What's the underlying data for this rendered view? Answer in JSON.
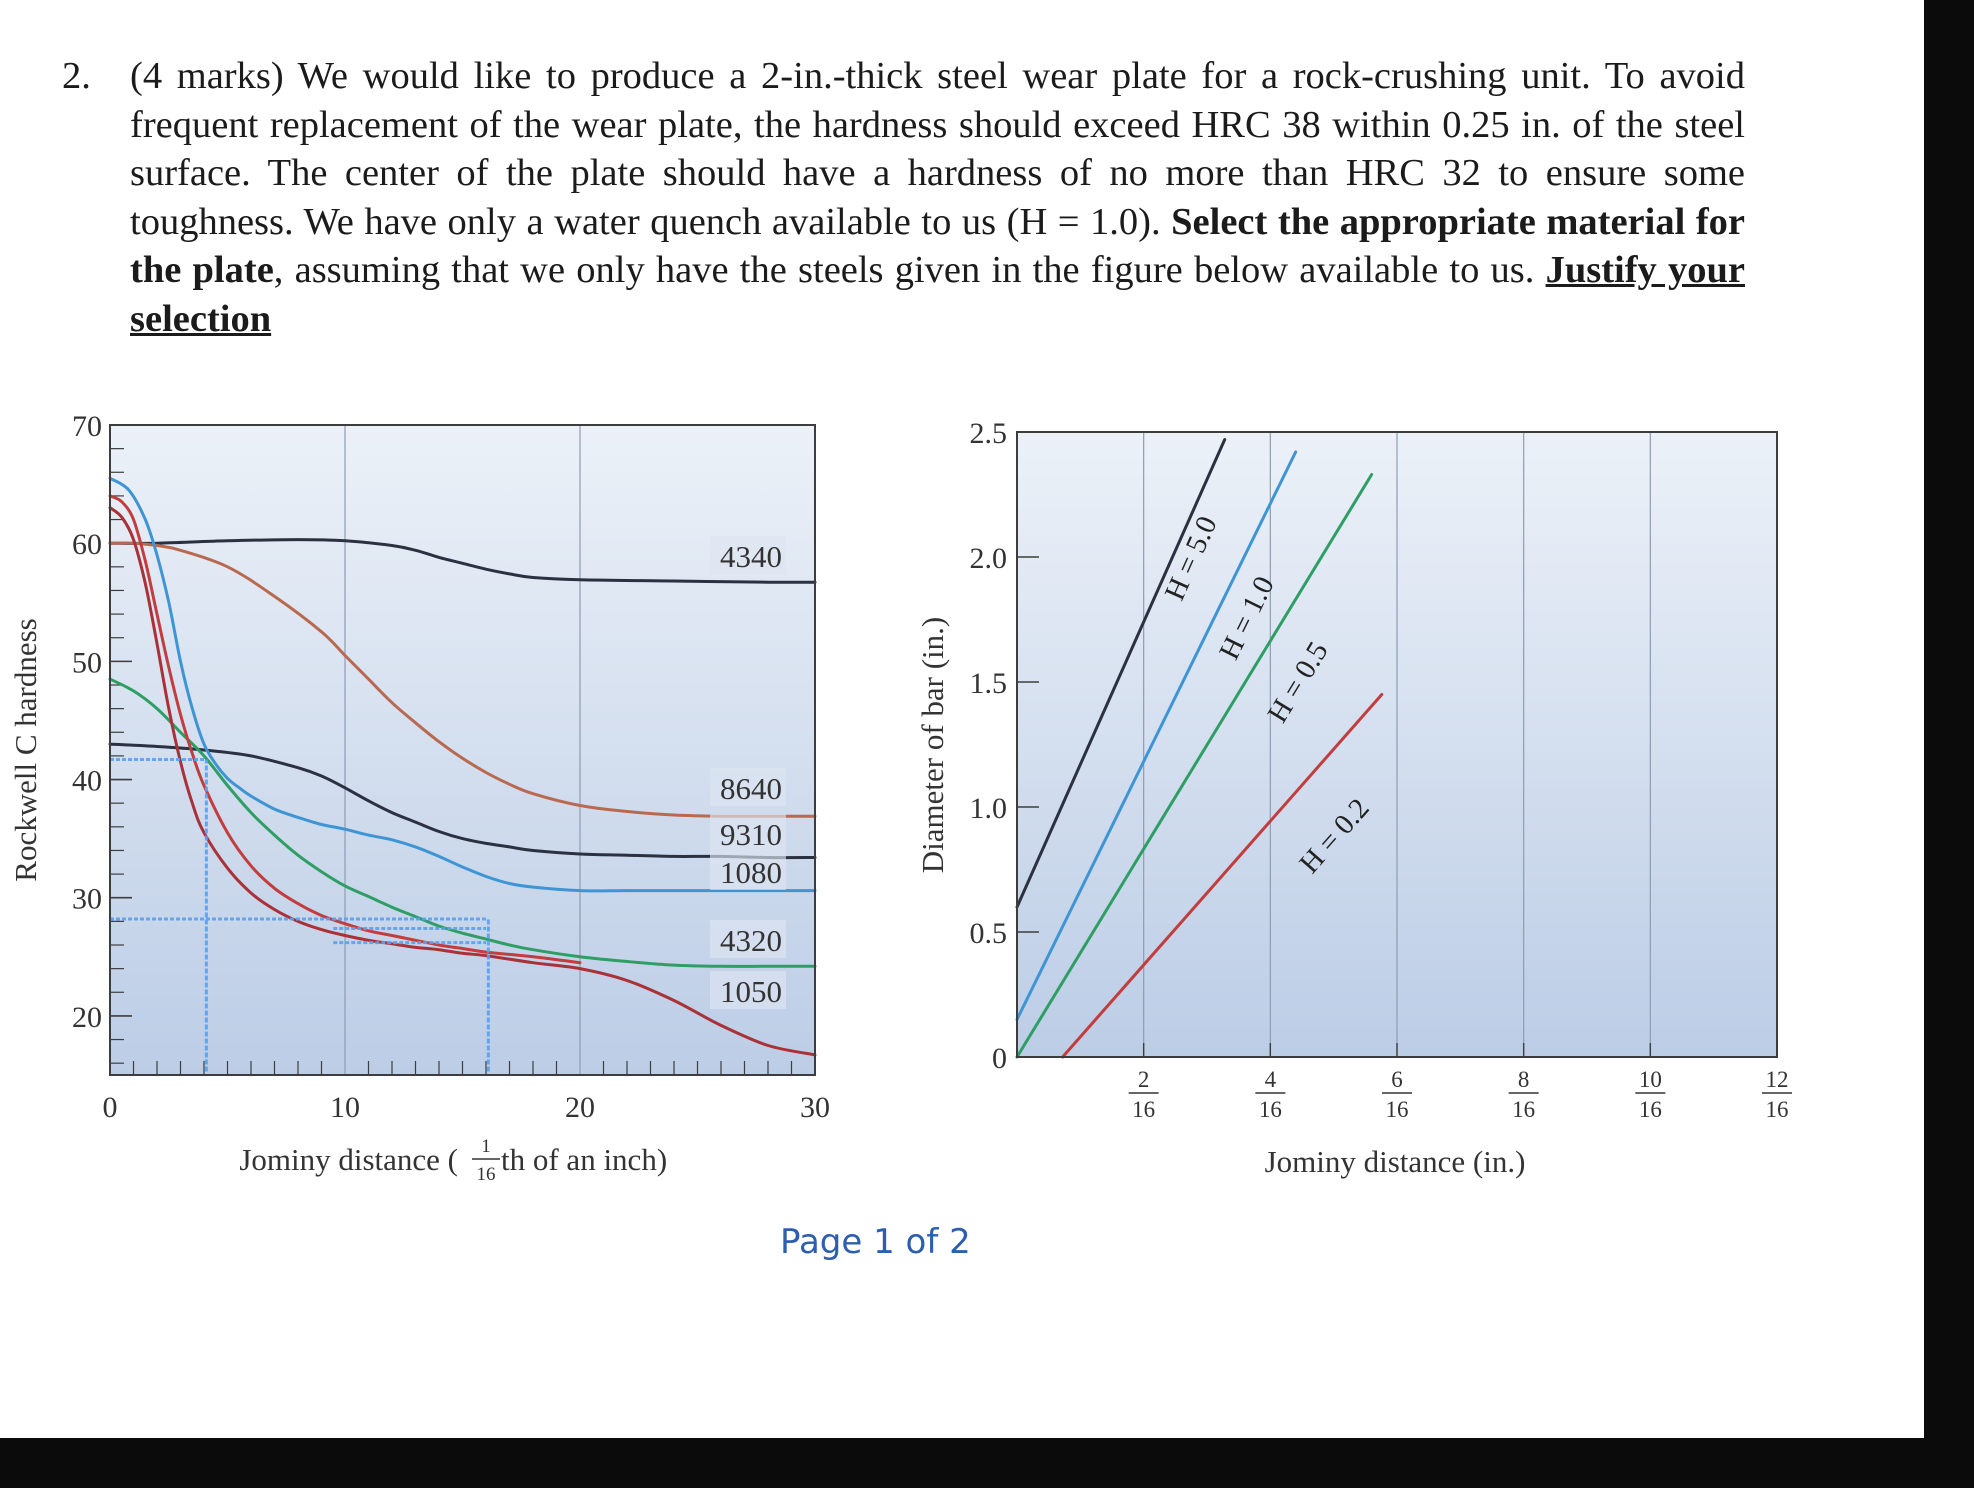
{
  "question": {
    "number": "2.",
    "marks": "(4 marks)",
    "text_1": " We would like to produce a 2-in.-thick steel wear plate for a rock-crushing unit. To avoid frequent replacement of the wear plate, the hardness should exceed HRC 38 within 0.25 in. of the steel surface. The center of the plate should have a hardness of no more than HRC 32 to ensure some toughness. We have only a water quench available to us (H = 1.0). ",
    "bold_1": "Select the appropriate material for the plate",
    "text_2": ", assuming that we only have the steels given  in the figure below available to us. ",
    "underlined": "Justify your selection"
  },
  "footer": {
    "page": "Page 1 of 2"
  },
  "colors": {
    "plot_top": "#ecf1f8",
    "plot_bottom": "#bccde6",
    "frame": "#3d3d3d",
    "dark": "#2b3140",
    "brown": "#b9694f",
    "blue": "#3f95d3",
    "green": "#2f9e65",
    "red": "#c23d3d",
    "dark_red": "#a93138",
    "annotation": "#5aa0ef"
  },
  "chart_data": [
    {
      "type": "line",
      "title": "",
      "xlabel": "Jominy distance (1/16th of an inch)",
      "xlabel_parts": {
        "pre": "Jominy distance (",
        "frac_num": "1",
        "frac_den": "16",
        "post": "th of an inch)"
      },
      "ylabel": "Rockwell C hardness",
      "xlim": [
        0,
        30
      ],
      "ylim": [
        15,
        70
      ],
      "xticks": [
        "0",
        "10",
        "20",
        "30"
      ],
      "yticks": [
        "20",
        "30",
        "40",
        "50",
        "60",
        "70"
      ],
      "series": [
        {
          "name": "4340",
          "color": "dark",
          "x": [
            0,
            2,
            5,
            8,
            10,
            12,
            13,
            14,
            15,
            16,
            17,
            18,
            20,
            24,
            28,
            30
          ],
          "y": [
            60,
            60,
            60.2,
            60.3,
            60.2,
            59.8,
            59.4,
            58.8,
            58.3,
            57.8,
            57.4,
            57.1,
            56.9,
            56.8,
            56.7,
            56.7
          ]
        },
        {
          "name": "8640",
          "color": "brown",
          "x": [
            0,
            1,
            2,
            3,
            5,
            7,
            9,
            10,
            11,
            12,
            13,
            14,
            15,
            16,
            17,
            18,
            20,
            22,
            24,
            26,
            28,
            30
          ],
          "y": [
            60,
            60,
            59.8,
            59.4,
            58,
            55.5,
            52.5,
            50.5,
            48.5,
            46.5,
            44.8,
            43.2,
            41.8,
            40.6,
            39.6,
            38.8,
            37.8,
            37.3,
            37,
            36.9,
            36.9,
            36.9
          ]
        },
        {
          "name": "9310",
          "color": "dark",
          "x": [
            0,
            2,
            4,
            6,
            8,
            9,
            10,
            11,
            12,
            13,
            14,
            15,
            16,
            17,
            18,
            20,
            22,
            24,
            26,
            28,
            30
          ],
          "y": [
            43,
            42.8,
            42.5,
            42,
            41,
            40.3,
            39.3,
            38.2,
            37.2,
            36.4,
            35.6,
            35,
            34.6,
            34.3,
            34,
            33.7,
            33.6,
            33.5,
            33.5,
            33.4,
            33.4
          ]
        },
        {
          "name": "1080",
          "color": "blue",
          "x": [
            0,
            0.8,
            1.5,
            2,
            2.5,
            3,
            3.5,
            4,
            4.5,
            5,
            5.5,
            6,
            7,
            8,
            9,
            10,
            11,
            12,
            13,
            14,
            15,
            16,
            17,
            18,
            20,
            22,
            24,
            26,
            28,
            30
          ],
          "y": [
            65.5,
            64.5,
            62,
            59,
            55,
            50,
            46,
            43,
            41.3,
            40.1,
            39.3,
            38.6,
            37.5,
            36.8,
            36.2,
            35.8,
            35.3,
            34.9,
            34.3,
            33.5,
            32.6,
            31.8,
            31.2,
            30.9,
            30.6,
            30.6,
            30.6,
            30.6,
            30.6,
            30.6
          ]
        },
        {
          "name": "4320",
          "color": "green",
          "x": [
            0,
            1,
            2,
            3,
            4,
            5,
            6,
            7,
            8,
            9,
            10,
            11,
            12,
            13,
            14,
            15,
            16,
            17,
            18,
            20,
            22,
            24,
            26,
            28,
            30
          ],
          "y": [
            48.5,
            47.5,
            46,
            44,
            42,
            39.5,
            37.2,
            35.3,
            33.6,
            32.2,
            31,
            30.1,
            29.2,
            28.4,
            27.6,
            27,
            26.5,
            26,
            25.6,
            25,
            24.6,
            24.3,
            24.2,
            24.2,
            24.2
          ]
        },
        {
          "name": "1050",
          "color": "dark_red",
          "x": [
            0,
            0.5,
            1,
            1.5,
            2,
            2.5,
            3,
            3.5,
            4,
            5,
            6,
            7,
            8,
            9,
            10,
            11,
            12,
            13,
            14,
            15,
            16,
            18,
            20,
            22,
            24,
            26,
            28,
            30
          ],
          "y": [
            63,
            62.2,
            60.3,
            56.6,
            51.5,
            46,
            41.5,
            38,
            35.5,
            32.5,
            30.4,
            29,
            28,
            27.3,
            26.8,
            26.4,
            26.1,
            25.8,
            25.6,
            25.3,
            25.1,
            24.5,
            24,
            23,
            21.3,
            19.2,
            17.5,
            16.7
          ]
        },
        {
          "name": "",
          "color": "red",
          "x": [
            0,
            0.5,
            1,
            1.5,
            2,
            2.5,
            3,
            3.5,
            4,
            5,
            6,
            7,
            8,
            9,
            10,
            11,
            12,
            13,
            14,
            15,
            16,
            18,
            20
          ],
          "y": [
            64,
            63.5,
            62,
            58.5,
            54,
            49.5,
            45.5,
            42.2,
            39.5,
            35.5,
            32.7,
            30.8,
            29.5,
            28.5,
            27.8,
            27.2,
            26.8,
            26.4,
            26,
            25.7,
            25.4,
            25,
            24.5
          ]
        }
      ],
      "annotations": {
        "handwritten_hlines": [
          {
            "y": 41.7,
            "x": [
              0,
              4
            ]
          },
          {
            "y": 28.2,
            "x": [
              0,
              16
            ]
          },
          {
            "y": 27.4,
            "x": [
              9.5,
              16
            ]
          },
          {
            "y": 26.2,
            "x": [
              9.5,
              16
            ]
          }
        ],
        "handwritten_vlines": [
          {
            "x": 4.1,
            "y": [
              15.3,
              41.7
            ]
          },
          {
            "x": 16.1,
            "y": [
              15.3,
              28.2
            ]
          }
        ]
      }
    },
    {
      "type": "line",
      "title": "",
      "xlabel": "Jominy distance (in.)",
      "ylabel": "Diameter of bar (in.)",
      "xlim": [
        0,
        0.75
      ],
      "ylim": [
        0,
        2.5
      ],
      "yticks": [
        "0",
        "0.5",
        "1.0",
        "1.5",
        "2.0",
        "2.5"
      ],
      "xtick_fractions": [
        {
          "num": "2",
          "den": "16"
        },
        {
          "num": "4",
          "den": "16"
        },
        {
          "num": "6",
          "den": "16"
        },
        {
          "num": "8",
          "den": "16"
        },
        {
          "num": "10",
          "den": "16"
        },
        {
          "num": "12",
          "den": "16"
        }
      ],
      "series": [
        {
          "name": "H = 5.0",
          "color": "dark",
          "x": [
            0,
            0.205
          ],
          "y": [
            0.6,
            2.47
          ]
        },
        {
          "name": "H = 1.0",
          "color": "blue",
          "x": [
            0,
            0.275
          ],
          "y": [
            0.15,
            2.42
          ]
        },
        {
          "name": "H = 0.5",
          "color": "green",
          "x": [
            0,
            0.35
          ],
          "y": [
            0,
            2.33
          ]
        },
        {
          "name": "H = 0.2",
          "color": "red",
          "x": [
            0.045,
            0.36
          ],
          "y": [
            0,
            1.45
          ]
        }
      ]
    }
  ]
}
